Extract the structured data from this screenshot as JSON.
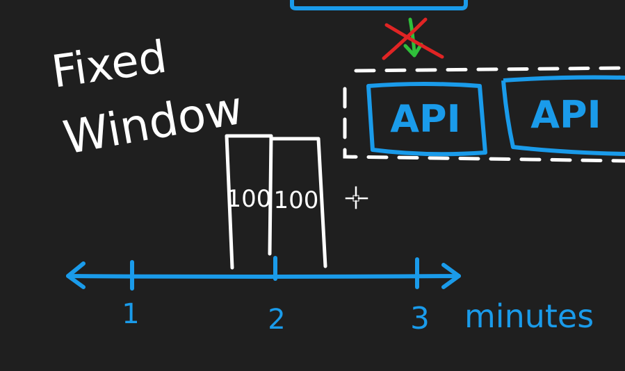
{
  "title": {
    "line1": "Fixed",
    "line2": "Window"
  },
  "servers": [
    {
      "label": "API"
    },
    {
      "label": "API"
    }
  ],
  "bars": [
    {
      "label": "100"
    },
    {
      "label": "100"
    }
  ],
  "axis": {
    "ticks": [
      "1",
      "2",
      "3"
    ],
    "unit": "minutes"
  },
  "colors": {
    "background": "#1f1f1f",
    "chalk": "#ffffff",
    "blue": "#1a9bea",
    "red": "#e02424",
    "green": "#2fbf3a"
  },
  "cursor_icon": "crosshair-move-icon"
}
